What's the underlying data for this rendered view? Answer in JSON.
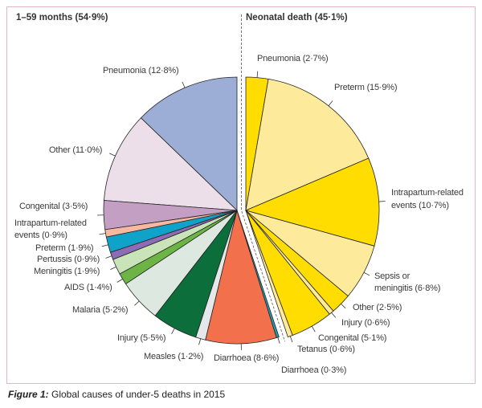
{
  "chart_data": {
    "type": "pie",
    "title": "Global causes of under-5 deaths in 2015",
    "caption_prefix": "Figure 1:",
    "caption_text": " Global causes of under-5 deaths in 2015",
    "groups": [
      {
        "name": "1–59 months (54·9%)",
        "value": 54.9,
        "direction": "counterclockwise",
        "slices": [
          {
            "label": "Pneumonia (12·8%)",
            "value": 12.8,
            "color": "#9daed6"
          },
          {
            "label": "Other (11·0%)",
            "value": 11.0,
            "color": "#ecdfea"
          },
          {
            "label": "Congenital (3·5%)",
            "value": 3.5,
            "color": "#c49fc4"
          },
          {
            "label": "Intrapartum-related",
            "label2": "events (0·9%)",
            "value": 0.9,
            "color": "#f7b7a0"
          },
          {
            "label": "Preterm (1·9%)",
            "value": 1.9,
            "color": "#10a3c9"
          },
          {
            "label": "Pertussis (0·9%)",
            "value": 0.9,
            "color": "#8d6bb5"
          },
          {
            "label": "Meningitis (1·9%)",
            "value": 1.9,
            "color": "#c8e4b8"
          },
          {
            "label": "AIDS (1·4%)",
            "value": 1.4,
            "color": "#6cb445"
          },
          {
            "label": "Malaria (5·2%)",
            "value": 5.2,
            "color": "#dce8e0"
          },
          {
            "label": "Injury (5·5%)",
            "value": 5.5,
            "color": "#0b6e3b"
          },
          {
            "label": "Measles (1·2%)",
            "value": 1.2,
            "color": "#e4e8ea"
          },
          {
            "label": "Diarrhoea (8·6%)",
            "value": 8.6,
            "color": "#f2704c"
          },
          {
            "label": "Diarrhoea (0·3%)",
            "value": 0.3,
            "color": "#1a9fb5"
          }
        ]
      },
      {
        "name": "Neonatal death (45·1%)",
        "value": 45.1,
        "direction": "clockwise",
        "slices": [
          {
            "label": "Pneumonia (2·7%)",
            "value": 2.7,
            "color": "#ffdd00"
          },
          {
            "label": "Preterm (15·9%)",
            "value": 15.9,
            "color": "#fdeb9b"
          },
          {
            "label": "Intrapartum-related",
            "label2": "events (10·7%)",
            "value": 10.7,
            "color": "#ffdd00"
          },
          {
            "label": "Sepsis or",
            "label2": "meningitis (6·8%)",
            "value": 6.8,
            "color": "#fdeb9b"
          },
          {
            "label": "Other (2·5%)",
            "value": 2.5,
            "color": "#ffdd00"
          },
          {
            "label": "Injury (0·6%)",
            "value": 0.6,
            "color": "#fdeb9b"
          },
          {
            "label": "Congenital (5·1%)",
            "value": 5.1,
            "color": "#ffdd00"
          },
          {
            "label": "Tetanus (0·6%)",
            "value": 0.6,
            "color": "#fdeb9b"
          }
        ]
      }
    ]
  }
}
